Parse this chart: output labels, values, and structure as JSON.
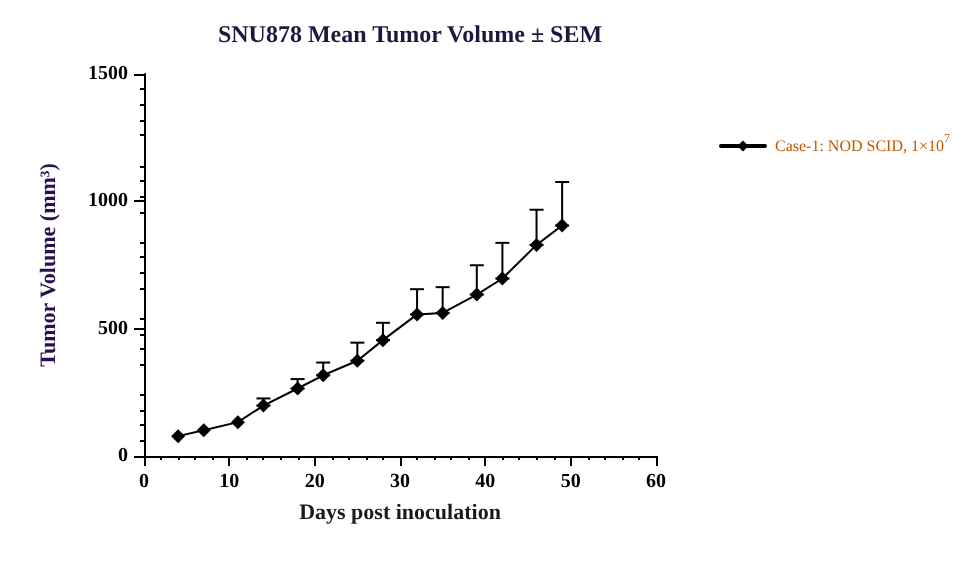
{
  "chart_data": {
    "type": "line",
    "title": "SNU878 Mean Tumor Volume ± SEM",
    "xlabel": "Days post inoculation",
    "ylabel": "Tumor Volume (mm³)",
    "x": [
      4,
      7,
      11,
      14,
      18,
      21,
      25,
      28,
      32,
      35,
      39,
      42,
      46,
      49
    ],
    "series": [
      {
        "name": "Case-1: NOD SCID, 1×10$^{7}$",
        "color": "#000000",
        "values": [
          78,
          101,
          133,
          198,
          265,
          317,
          374,
          455,
          556,
          562,
          634,
          697,
          829,
          905
        ],
        "errors": [
          null,
          null,
          null,
          [
            198,
            226
          ],
          [
            265,
            302
          ],
          [
            317,
            367
          ],
          [
            374,
            445
          ],
          [
            455,
            523
          ],
          [
            556,
            655
          ],
          [
            562,
            663
          ],
          [
            634,
            749
          ],
          [
            697,
            837
          ],
          [
            829,
            967
          ],
          [
            905,
            1076
          ]
        ]
      }
    ],
    "xlim": [
      0,
      60
    ],
    "xticks": [
      0,
      10,
      20,
      30,
      40,
      50,
      60
    ],
    "ylim": [
      0,
      1500
    ],
    "yticks": [
      0,
      500,
      1000,
      1500
    ],
    "marker": "diamond",
    "line_style": "solid",
    "grid": false,
    "legend": "top right"
  }
}
